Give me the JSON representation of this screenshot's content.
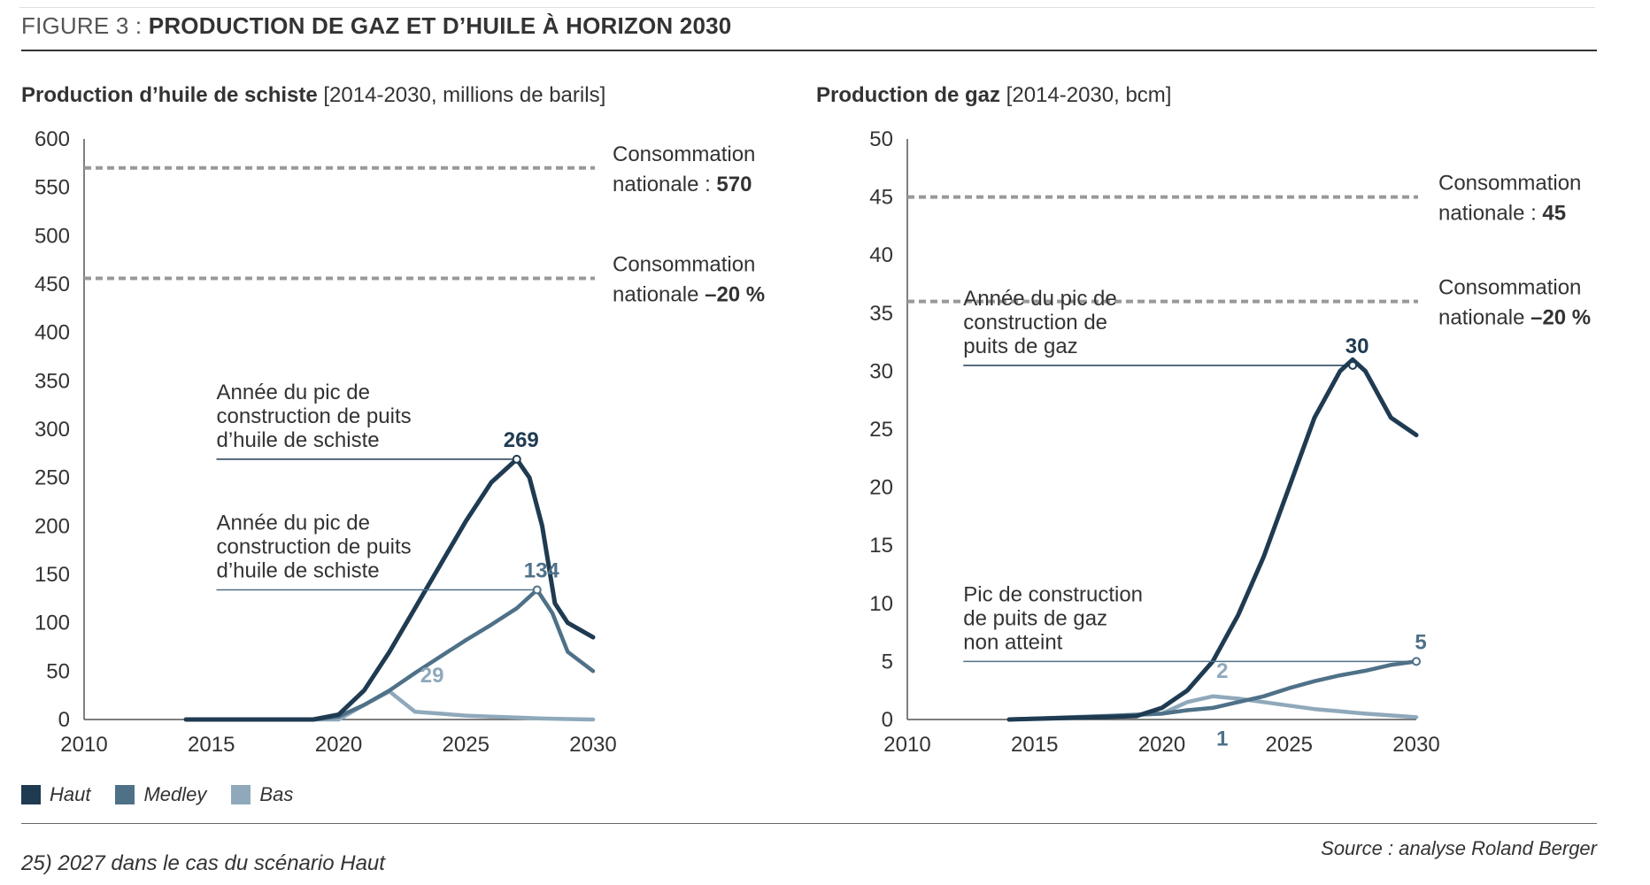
{
  "figure": {
    "label": "FIGURE 3 : ",
    "title": "PRODUCTION DE GAZ ET D’HUILE À HORIZON 2030",
    "footnote": "25) 2027 dans le cas du scénario Haut",
    "source": "Source : analyse Roland Berger"
  },
  "colors": {
    "haut": "#1f3b52",
    "medley": "#4f7188",
    "bas": "#8fa9bb",
    "ref": "#999999",
    "axis": "#555555"
  },
  "legend": [
    {
      "label": "Haut",
      "color": "#1f3b52"
    },
    {
      "label": "Medley",
      "color": "#4f7188"
    },
    {
      "label": "Bas",
      "color": "#8fa9bb"
    }
  ],
  "chart_data": [
    {
      "type": "line",
      "title_bold": "Production d’huile de schiste",
      "title_rest": " [2014-2030, millions de barils]",
      "xlim": [
        2010,
        2030
      ],
      "ylim": [
        0,
        600
      ],
      "xticks": [
        2010,
        2015,
        2020,
        2025,
        2030
      ],
      "yticks": [
        0,
        50,
        100,
        150,
        200,
        250,
        300,
        350,
        400,
        450,
        500,
        550,
        600
      ],
      "series": [
        {
          "name": "Haut",
          "color": "#1f3b52",
          "x": [
            2014,
            2019,
            2020,
            2021,
            2022,
            2023,
            2024,
            2025,
            2026,
            2027,
            2027.5,
            2028,
            2028.5,
            2029,
            2030
          ],
          "y": [
            0,
            0,
            5,
            30,
            70,
            115,
            160,
            205,
            245,
            269,
            250,
            200,
            120,
            100,
            85
          ]
        },
        {
          "name": "Medley",
          "color": "#4f7188",
          "x": [
            2014,
            2019,
            2020,
            2021,
            2022,
            2023,
            2024,
            2025,
            2026,
            2027,
            2027.8,
            2028.4,
            2029,
            2030
          ],
          "y": [
            0,
            0,
            3,
            15,
            30,
            48,
            65,
            82,
            98,
            115,
            134,
            110,
            70,
            50
          ]
        },
        {
          "name": "Bas",
          "color": "#8fa9bb",
          "x": [
            2014,
            2020,
            2021,
            2022,
            2023,
            2024,
            2025,
            2026,
            2027,
            2028,
            2030
          ],
          "y": [
            0,
            0,
            15,
            29,
            8,
            6,
            4,
            3,
            2,
            1,
            0
          ]
        }
      ],
      "reference_lines": [
        {
          "y": 570,
          "line1": "Consommation",
          "line2_prefix": "nationale : ",
          "line2_value": "570"
        },
        {
          "y": 456,
          "line1": "Consommation",
          "line2_prefix": "nationale ",
          "line2_value": "–20 %"
        }
      ],
      "annotations": [
        {
          "lines": [
            "Année du pic de",
            "construction de puits",
            "d’huile de schiste"
          ],
          "value": "269",
          "x": 2027,
          "y": 269,
          "from_x": 2015.2,
          "series": "haut"
        },
        {
          "lines": [
            "Année du pic de",
            "construction de puits",
            "d’huile de schiste"
          ],
          "value": "134",
          "x": 2027.8,
          "y": 134,
          "from_x": 2015.2,
          "series": "medley"
        },
        {
          "value": "29",
          "x": 2023.5,
          "y": 22,
          "series": "bas"
        }
      ]
    },
    {
      "type": "line",
      "title_bold": "Production de gaz",
      "title_rest": " [2014-2030, bcm]",
      "xlim": [
        2010,
        2030
      ],
      "ylim": [
        0,
        50
      ],
      "xticks": [
        2010,
        2015,
        2020,
        2025,
        2030
      ],
      "yticks": [
        0,
        5,
        10,
        15,
        20,
        25,
        30,
        35,
        40,
        45,
        50
      ],
      "series": [
        {
          "name": "Haut",
          "color": "#1f3b52",
          "x": [
            2014,
            2019,
            2020,
            2021,
            2022,
            2023,
            2024,
            2025,
            2026,
            2027,
            2027.5,
            2028,
            2029,
            2030
          ],
          "y": [
            0,
            0.3,
            1,
            2.5,
            5,
            9,
            14,
            20,
            26,
            30,
            31,
            30,
            26,
            24.5
          ]
        },
        {
          "name": "Medley",
          "color": "#4f7188",
          "x": [
            2014,
            2018,
            2020,
            2021,
            2022,
            2023,
            2024,
            2025,
            2026,
            2027,
            2028,
            2029,
            2030
          ],
          "y": [
            0,
            0.3,
            0.5,
            0.8,
            1,
            1.5,
            2,
            2.7,
            3.3,
            3.8,
            4.2,
            4.7,
            5
          ]
        },
        {
          "name": "Bas",
          "color": "#8fa9bb",
          "x": [
            2014,
            2020,
            2021,
            2022,
            2023,
            2024,
            2025,
            2026,
            2027,
            2028,
            2030
          ],
          "y": [
            0,
            0.5,
            1.5,
            2,
            1.8,
            1.5,
            1.2,
            0.9,
            0.7,
            0.5,
            0.2
          ]
        }
      ],
      "reference_lines": [
        {
          "y": 45,
          "line1": "Consommation",
          "line2_prefix": "nationale : ",
          "line2_value": "45"
        },
        {
          "y": 36,
          "line1": "Consommation",
          "line2_prefix": "nationale ",
          "line2_value": "–20 %"
        }
      ],
      "annotations": [
        {
          "lines": [
            "Année du pic de",
            "construction de",
            "puits de gaz"
          ],
          "value": "30",
          "x": 2027.5,
          "y": 30.5,
          "from_x": 2012.2,
          "series": "haut"
        },
        {
          "lines": [
            "Pic de construction",
            "de puits de gaz",
            "non atteint"
          ],
          "value": "5",
          "x": 2030,
          "y": 5,
          "from_x": 2012.2,
          "series": "medley"
        },
        {
          "value": "2",
          "x": 2022.2,
          "y": 2.2,
          "series": "bas"
        },
        {
          "value": "1",
          "x": 2022.2,
          "y": 0.5,
          "series": "medley_low"
        }
      ]
    }
  ]
}
